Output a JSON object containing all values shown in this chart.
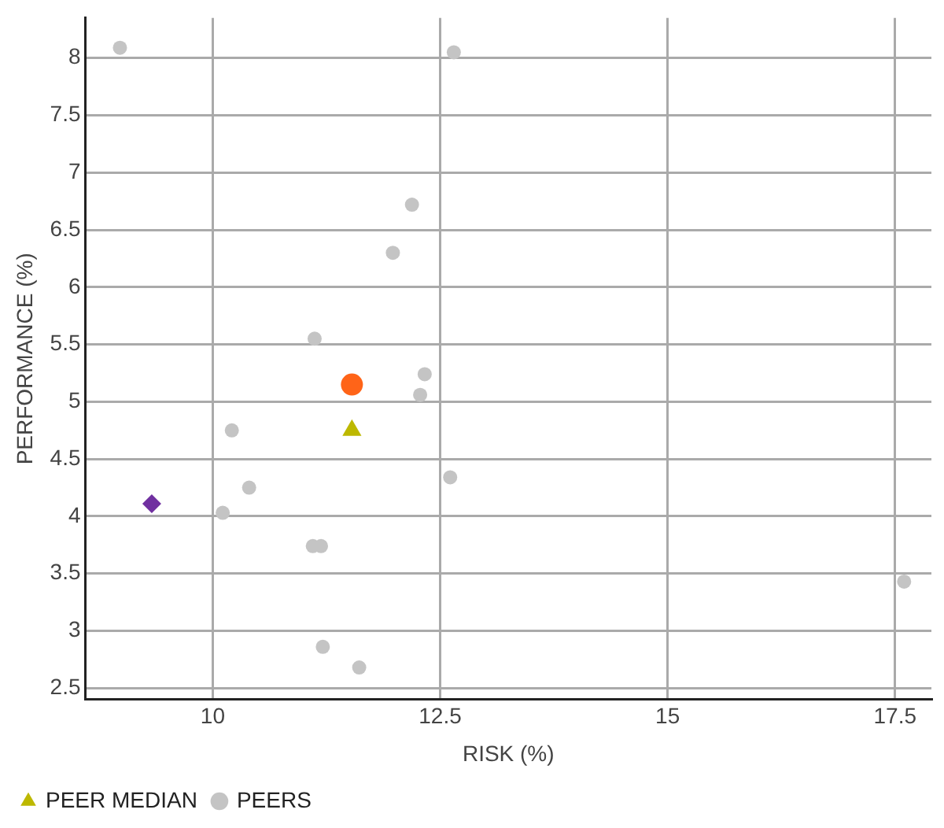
{
  "chart_data": {
    "type": "scatter",
    "xlabel": "RISK (%)",
    "ylabel": "PERFORMANCE (%)",
    "xlim": [
      8.6,
      17.9
    ],
    "xticks": [
      10,
      12.5,
      15,
      17.5
    ],
    "ylim": [
      2.4,
      8.35
    ],
    "yticks": [
      2.5,
      3,
      3.5,
      4,
      4.5,
      5,
      5.5,
      6,
      6.5,
      7,
      7.5,
      8
    ],
    "grid": true,
    "legend": "bottom",
    "series": [
      {
        "color": "#ff6418",
        "marker": "circle",
        "x": [
          11.53
        ],
        "values": [
          5.15
        ]
      },
      {
        "color": "#7030a0",
        "marker": "diamond",
        "x": [
          9.33
        ],
        "values": [
          4.11
        ]
      },
      {
        "name": "PEER MEDIAN",
        "color": "#bdb800",
        "marker": "triangle",
        "x": [
          11.53
        ],
        "values": [
          4.75
        ]
      },
      {
        "name": "PEERS",
        "color": "#c4c4c4",
        "marker": "circle",
        "x": [
          8.98,
          12.65,
          12.19,
          11.98,
          11.12,
          12.33,
          12.28,
          10.21,
          12.61,
          10.4,
          10.11,
          11.1,
          11.19,
          11.21,
          11.61,
          17.6
        ],
        "values": [
          8.09,
          8.05,
          6.72,
          6.3,
          5.55,
          5.24,
          5.06,
          4.75,
          4.34,
          4.25,
          4.03,
          3.74,
          3.74,
          2.86,
          2.68,
          3.43
        ]
      }
    ]
  }
}
